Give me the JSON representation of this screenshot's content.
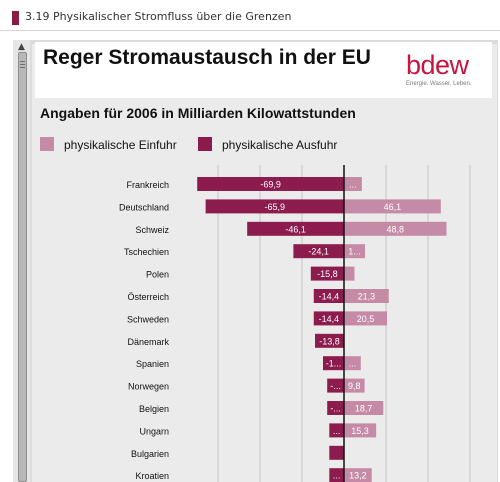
{
  "header": {
    "title": "3.19 Physikalischer Stromfluss über die Grenzen"
  },
  "banner": {
    "headline": "Reger Stromaustausch in der EU"
  },
  "logo": {
    "word": "bdew",
    "tagline": "Energie. Wasser. Leben."
  },
  "subtitle": "Angaben für 2006 in Milliarden Kilowattstunden",
  "colors": {
    "einfuhr": "#c58aa6",
    "ausfuhr": "#8b1c4d",
    "brand": "#c4163f"
  },
  "chart_data": {
    "type": "bar",
    "orientation": "horizontal",
    "categories": [
      "Frankreich",
      "Deutschland",
      "Schweiz",
      "Tschechien",
      "Polen",
      "Österreich",
      "Schweden",
      "Dänemark",
      "Spanien",
      "Norwegen",
      "Belgien",
      "Ungarn",
      "Bulgarien",
      "Kroatien"
    ],
    "series": [
      {
        "name": "physikalische Einfuhr",
        "values": [
          8.5,
          46.1,
          48.8,
          10,
          5,
          21.3,
          20.5,
          0,
          8,
          9.8,
          18.7,
          15.3,
          0,
          13.2
        ],
        "labels": [
          "...",
          "46,1",
          "48,8",
          "1...",
          "",
          "21,3",
          "20,5",
          "",
          "...",
          "9,8",
          "18,7",
          "15,3",
          "",
          "13,2"
        ]
      },
      {
        "name": "physikalische Ausfuhr",
        "values": [
          -69.9,
          -65.9,
          -46.1,
          -24.1,
          -15.8,
          -14.4,
          -14.4,
          -13.8,
          -10,
          -8,
          -8,
          -7,
          -7,
          -7
        ],
        "labels": [
          "-69,9",
          "-65,9",
          "-46,1",
          "-24,1",
          "-15,8",
          "-14,4",
          "-14,4",
          "-13,8",
          "-1...",
          "-...",
          "-...",
          "...",
          "",
          "..."
        ]
      }
    ],
    "xlim": [
      -80,
      80
    ],
    "grid": true,
    "legend_position": "top-left"
  }
}
